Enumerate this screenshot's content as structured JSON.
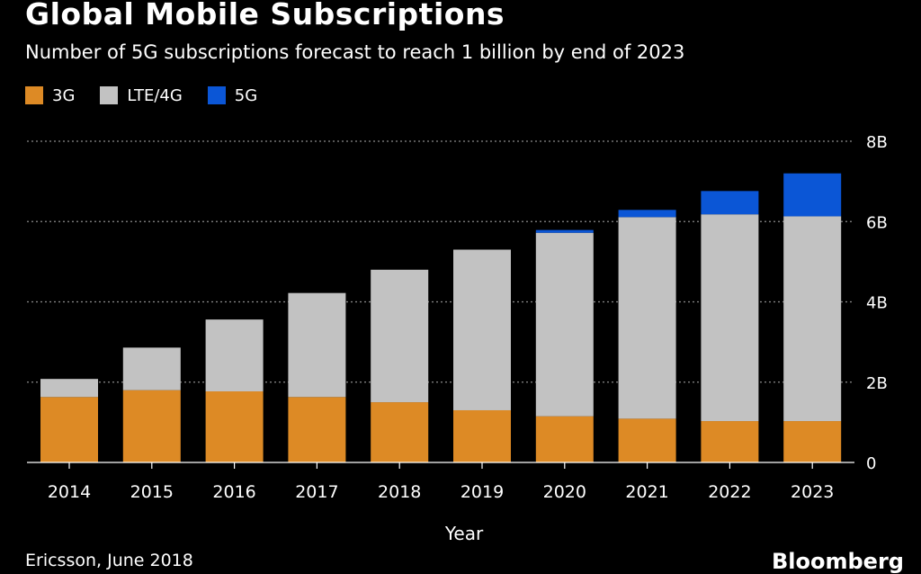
{
  "header": {
    "title": "Global Mobile Subscriptions",
    "subtitle": "Number of 5G subscriptions forecast to reach 1 billion by end of 2023"
  },
  "legend": [
    {
      "label": "3G",
      "color": "#dd8a25"
    },
    {
      "label": "LTE/4G",
      "color": "#c2c2c2"
    },
    {
      "label": "5G",
      "color": "#0b56d6"
    }
  ],
  "footer": {
    "source": "Ericsson, June 2018",
    "brand": "Bloomberg"
  },
  "chart_data": {
    "type": "bar",
    "stacked": true,
    "categories": [
      "2014",
      "2015",
      "2016",
      "2017",
      "2018",
      "2019",
      "2020",
      "2021",
      "2022",
      "2023"
    ],
    "series": [
      {
        "name": "3G",
        "color": "#dd8a25",
        "values": [
          1.63,
          1.8,
          1.77,
          1.63,
          1.5,
          1.3,
          1.15,
          1.09,
          1.03,
          1.03
        ]
      },
      {
        "name": "LTE/4G",
        "color": "#c2c2c2",
        "values": [
          0.45,
          1.06,
          1.79,
          2.59,
          3.3,
          4.0,
          4.57,
          5.02,
          5.15,
          5.1
        ]
      },
      {
        "name": "5G",
        "color": "#0b56d6",
        "values": [
          0,
          0,
          0,
          0,
          0,
          0,
          0.07,
          0.18,
          0.58,
          1.07
        ]
      }
    ],
    "xlabel": "Year",
    "ylabel": "",
    "ylim": [
      0,
      8
    ],
    "yticks": [
      {
        "value": 0,
        "label": "0"
      },
      {
        "value": 2,
        "label": "2B"
      },
      {
        "value": 4,
        "label": "4B"
      },
      {
        "value": 6,
        "label": "6B"
      },
      {
        "value": 8,
        "label": "8B"
      }
    ],
    "grid": true,
    "legend_position": "top-left"
  }
}
